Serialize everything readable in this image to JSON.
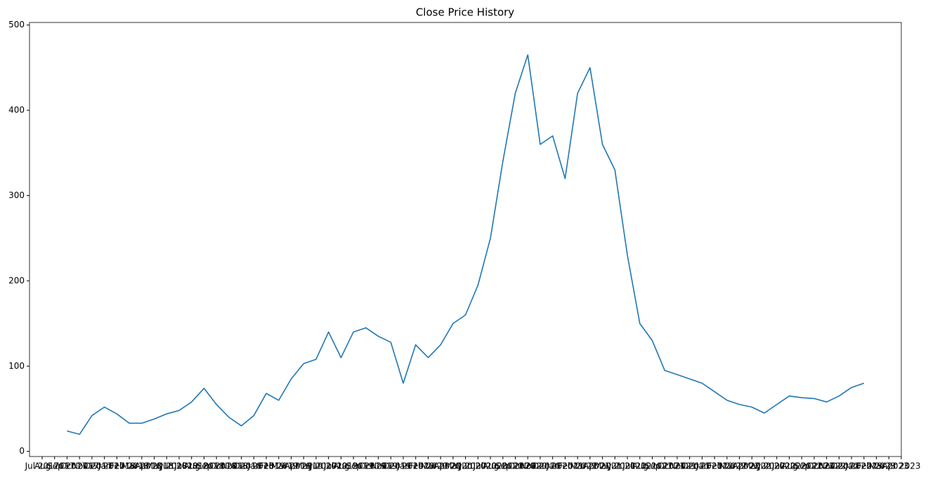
{
  "chart_data": {
    "type": "line",
    "title": "Close Price History",
    "categories": [
      "Jul 2017",
      "Aug 2017",
      "Sep 2017",
      "Oct 2017",
      "Nov 2017",
      "Dec 2017",
      "Jan 2018",
      "Feb 2018",
      "Mar 2018",
      "Apr 2018",
      "May 2018",
      "Jun 2018",
      "Jul 2018",
      "Aug 2018",
      "Sep 2018",
      "Oct 2018",
      "Nov 2018",
      "Dec 2018",
      "Jan 2019",
      "Feb 2019",
      "Mar 2019",
      "Apr 2019",
      "May 2019",
      "Jun 2019",
      "Jul 2019",
      "Aug 2019",
      "Sep 2019",
      "Oct 2019",
      "Nov 2019",
      "Dec 2019",
      "Jan 2020",
      "Feb 2020",
      "Mar 2020",
      "Apr 2020",
      "May 2020",
      "Jun 2020",
      "Jul 2020",
      "Aug 2020",
      "Sep 2020",
      "Oct 2020",
      "Nov 2020",
      "Dec 2020",
      "Jan 2021",
      "Feb 2021",
      "Mar 2021",
      "Apr 2021",
      "May 2021",
      "Jun 2021",
      "Jul 2021",
      "Aug 2021",
      "Sep 2021",
      "Oct 2021",
      "Nov 2021",
      "Dec 2021",
      "Jan 2022",
      "Feb 2022",
      "Mar 2022",
      "Apr 2022",
      "May 2022",
      "Jun 2022",
      "Jul 2022",
      "Aug 2022",
      "Sep 2022",
      "Oct 2022",
      "Nov 2022",
      "Dec 2022",
      "Jan 2023",
      "Feb 2023",
      "Mar 2023",
      "Apr 2023"
    ],
    "series": [
      {
        "name": "Close",
        "color": "#1f77b4",
        "values": [
          null,
          null,
          24,
          20,
          42,
          52,
          44,
          33,
          33,
          38,
          44,
          48,
          58,
          74,
          55,
          40,
          30,
          42,
          68,
          60,
          85,
          103,
          108,
          140,
          110,
          140,
          145,
          135,
          128,
          80,
          125,
          110,
          125,
          150,
          160,
          195,
          250,
          340,
          420,
          465,
          360,
          370,
          320,
          420,
          450,
          360,
          330,
          230,
          150,
          130,
          95,
          90,
          85,
          80,
          70,
          60,
          55,
          52,
          45,
          55,
          65,
          63,
          62,
          58,
          65,
          75,
          80,
          null,
          null,
          null
        ]
      }
    ],
    "ylim": [
      -6,
      503
    ],
    "yticks": [
      0,
      100,
      200,
      300,
      400,
      500
    ]
  }
}
